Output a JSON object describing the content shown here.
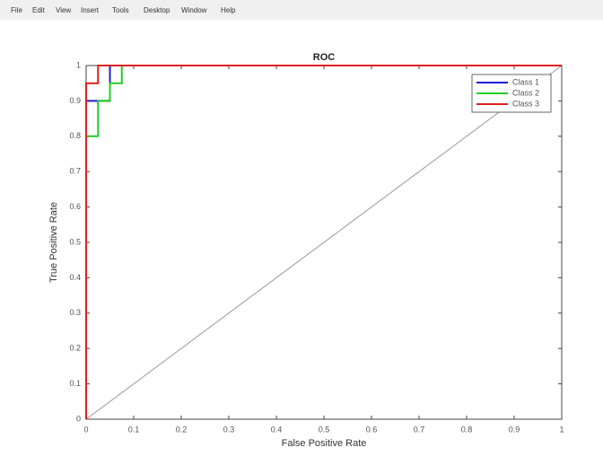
{
  "menu": [
    "File",
    "Edit",
    "View",
    "Insert",
    "Tools",
    "Desktop",
    "Window",
    "Help"
  ],
  "chart_data": {
    "type": "line",
    "title": "ROC",
    "x_label": "False Positive Rate",
    "y_label": "True Positive Rate",
    "xlim": [
      0,
      1
    ],
    "ylim": [
      0,
      1
    ],
    "xticks": [
      0,
      0.1,
      0.2,
      0.3,
      0.4,
      0.5,
      0.6,
      0.7,
      0.8,
      0.9,
      1
    ],
    "yticks": [
      0,
      0.1,
      0.2,
      0.3,
      0.4,
      0.5,
      0.6,
      0.7,
      0.8,
      0.9,
      1
    ],
    "legend": "upper right",
    "reference_line": {
      "x": [
        0,
        1
      ],
      "values": [
        0,
        1
      ],
      "color": "#999999"
    },
    "series": [
      {
        "name": "Class 1",
        "color": "#1f1fd0",
        "x": [
          0,
          0,
          0.05,
          0.05,
          1
        ],
        "values": [
          0,
          0.9,
          0.9,
          1,
          1
        ]
      },
      {
        "name": "Class 2",
        "color": "#22cc22",
        "x": [
          0,
          0,
          0.025,
          0.025,
          0.05,
          0.05,
          0.075,
          0.075,
          1
        ],
        "values": [
          0,
          0.8,
          0.8,
          0.9,
          0.9,
          0.95,
          0.95,
          1,
          1
        ]
      },
      {
        "name": "Class 3",
        "color": "#e02020",
        "x": [
          0,
          0,
          0.025,
          0.025,
          1
        ],
        "values": [
          0,
          0.95,
          0.95,
          1,
          1
        ]
      }
    ]
  }
}
